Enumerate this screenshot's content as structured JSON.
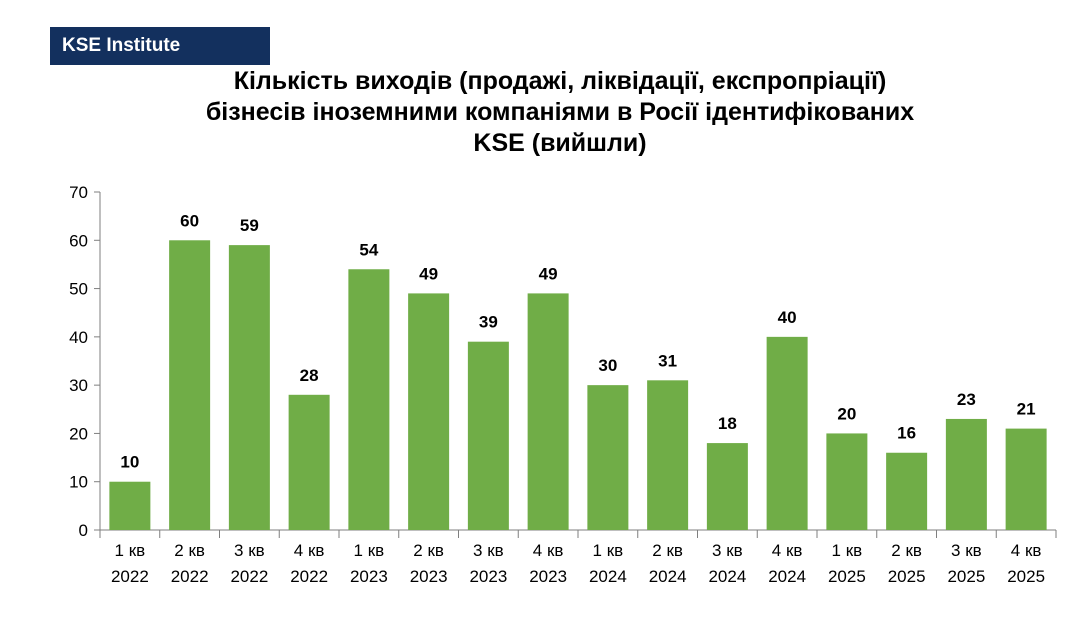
{
  "brand": {
    "label": "KSE Institute"
  },
  "chart_data": {
    "type": "bar",
    "title_lines": [
      "Кількість виходів (продажі, ліквідації, експропріації)",
      "бізнесів іноземними компаніями в Росії ідентифікованих",
      "KSE (вийшли)"
    ],
    "categories": [
      [
        "1 кв",
        "2022"
      ],
      [
        "2 кв",
        "2022"
      ],
      [
        "3 кв",
        "2022"
      ],
      [
        "4 кв",
        "2022"
      ],
      [
        "1 кв",
        "2023"
      ],
      [
        "2 кв",
        "2023"
      ],
      [
        "3 кв",
        "2023"
      ],
      [
        "4 кв",
        "2023"
      ],
      [
        "1 кв",
        "2024"
      ],
      [
        "2 кв",
        "2024"
      ],
      [
        "3 кв",
        "2024"
      ],
      [
        "4 кв",
        "2024"
      ],
      [
        "1 кв",
        "2025"
      ],
      [
        "2 кв",
        "2025"
      ],
      [
        "3 кв",
        "2025"
      ],
      [
        "4 кв",
        "2025"
      ]
    ],
    "values": [
      10,
      60,
      59,
      28,
      54,
      49,
      39,
      49,
      30,
      31,
      18,
      40,
      20,
      16,
      23,
      21
    ],
    "ylim": [
      0,
      70
    ],
    "yticks": [
      0,
      10,
      20,
      30,
      40,
      50,
      60,
      70
    ],
    "xlabel": "",
    "ylabel": "",
    "bar_color": "#70ad47",
    "axis_color": "#7f7f7f",
    "grid": false,
    "legend": "none"
  }
}
